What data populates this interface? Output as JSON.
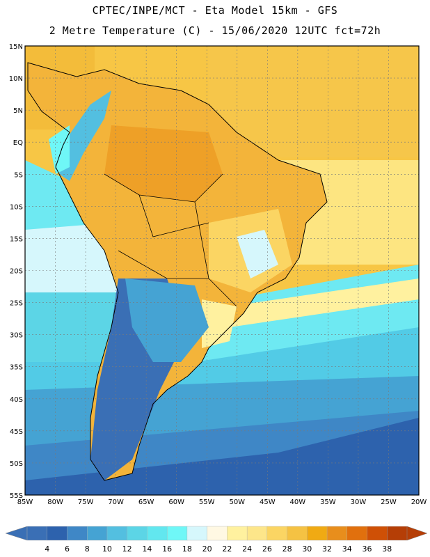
{
  "header": {
    "line1": "CPTEC/INPE/MCT -  Eta Model 15km - GFS",
    "line2": "2 Metre Temperature (C) - 15/06/2020 12UTC fct=72h"
  },
  "map": {
    "lat_labels": [
      "15N",
      "10N",
      "5N",
      "EQ",
      "5S",
      "10S",
      "15S",
      "20S",
      "25S",
      "30S",
      "35S",
      "40S",
      "45S",
      "50S",
      "55S"
    ],
    "lon_labels": [
      "85W",
      "80W",
      "75W",
      "70W",
      "65W",
      "60W",
      "55W",
      "50W",
      "45W",
      "40W",
      "35W",
      "30W",
      "25W",
      "20W"
    ],
    "lat_range": [
      15,
      -55
    ],
    "lon_range": [
      -85,
      -20
    ],
    "grid": true
  },
  "colorbar": {
    "labels": [
      "4",
      "6",
      "8",
      "10",
      "12",
      "14",
      "16",
      "18",
      "20",
      "22",
      "24",
      "26",
      "28",
      "30",
      "32",
      "34",
      "36",
      "38"
    ],
    "colors": [
      "#3a6fb5",
      "#2d62ad",
      "#3f87c6",
      "#45a3d3",
      "#53bfe0",
      "#5cd5e6",
      "#62e7ef",
      "#6ff7f7",
      "#d6f7fc",
      "#fff8e3",
      "#fff19f",
      "#fde68a",
      "#fbd563",
      "#f5c243",
      "#f0aa13",
      "#e88e1c",
      "#e1700d",
      "#cf5006",
      "#b53e06"
    ],
    "left_arrow_color": "#3a6fb5",
    "right_arrow_color": "#b53e06"
  }
}
